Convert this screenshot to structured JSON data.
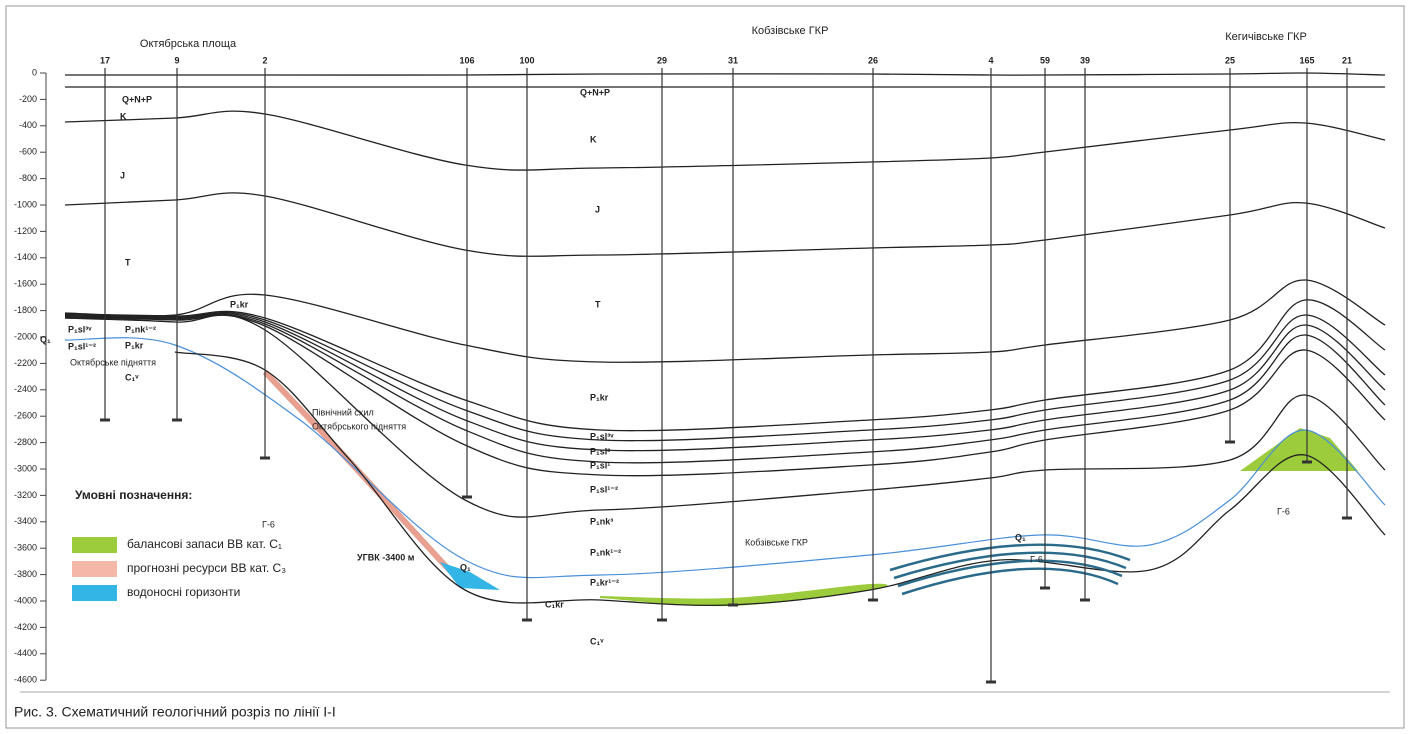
{
  "header": {
    "left_area": "Октябрська площа",
    "center_area": "Кобзівське ГКР",
    "right_area": "Кегичівське ГКР"
  },
  "wells": [
    "17",
    "9",
    "2",
    "106",
    "100",
    "29",
    "31",
    "26",
    "4",
    "59",
    "39",
    "25",
    "165",
    "21"
  ],
  "depth_ticks": [
    "0",
    "-200",
    "-400",
    "-600",
    "-800",
    "-1000",
    "-1200",
    "-1400",
    "-1600",
    "-1800",
    "-2000",
    "-2200",
    "-2400",
    "-2600",
    "-2800",
    "-3000",
    "-3200",
    "-3400",
    "-3600",
    "-3800",
    "-4000",
    "-4200",
    "-4400",
    "-4600"
  ],
  "layers": [
    "Q+N+P",
    "K",
    "J",
    "T",
    "P₁sl³ᵛ",
    "P₁sl¹⁻²",
    "P₁nk¹⁻²",
    "P₁kr",
    "P₁kr",
    "C₁ᵛ",
    "Q+N+P",
    "K",
    "J",
    "T",
    "P₁kr",
    "P₁sl³ᵛ",
    "P₁sl²",
    "P₁sl¹",
    "P₁sl¹⁻²",
    "P₁nk³",
    "P₁nk¹⁻²",
    "P₁kr¹⁻²",
    "C₁kr",
    "C₁ᵛ",
    "Q₁",
    "Q₁",
    "Q₁"
  ],
  "annotations": [
    "Октябрське підняття",
    "Північний схил",
    "Октябрського підняття",
    "УГВК -3400 м",
    "Кобзівське ГКР",
    "Г-6",
    "Г-6",
    "Г-6"
  ],
  "legend": {
    "title": "Умовні позначення:",
    "items": [
      "балансові запаси ВВ кат. C₁",
      "прогнозні ресурси ВВ кат. C₃",
      "водоносні горизонти"
    ]
  },
  "caption": "Рис. 3. Схематичний геологічний розріз по лінії I-I"
}
